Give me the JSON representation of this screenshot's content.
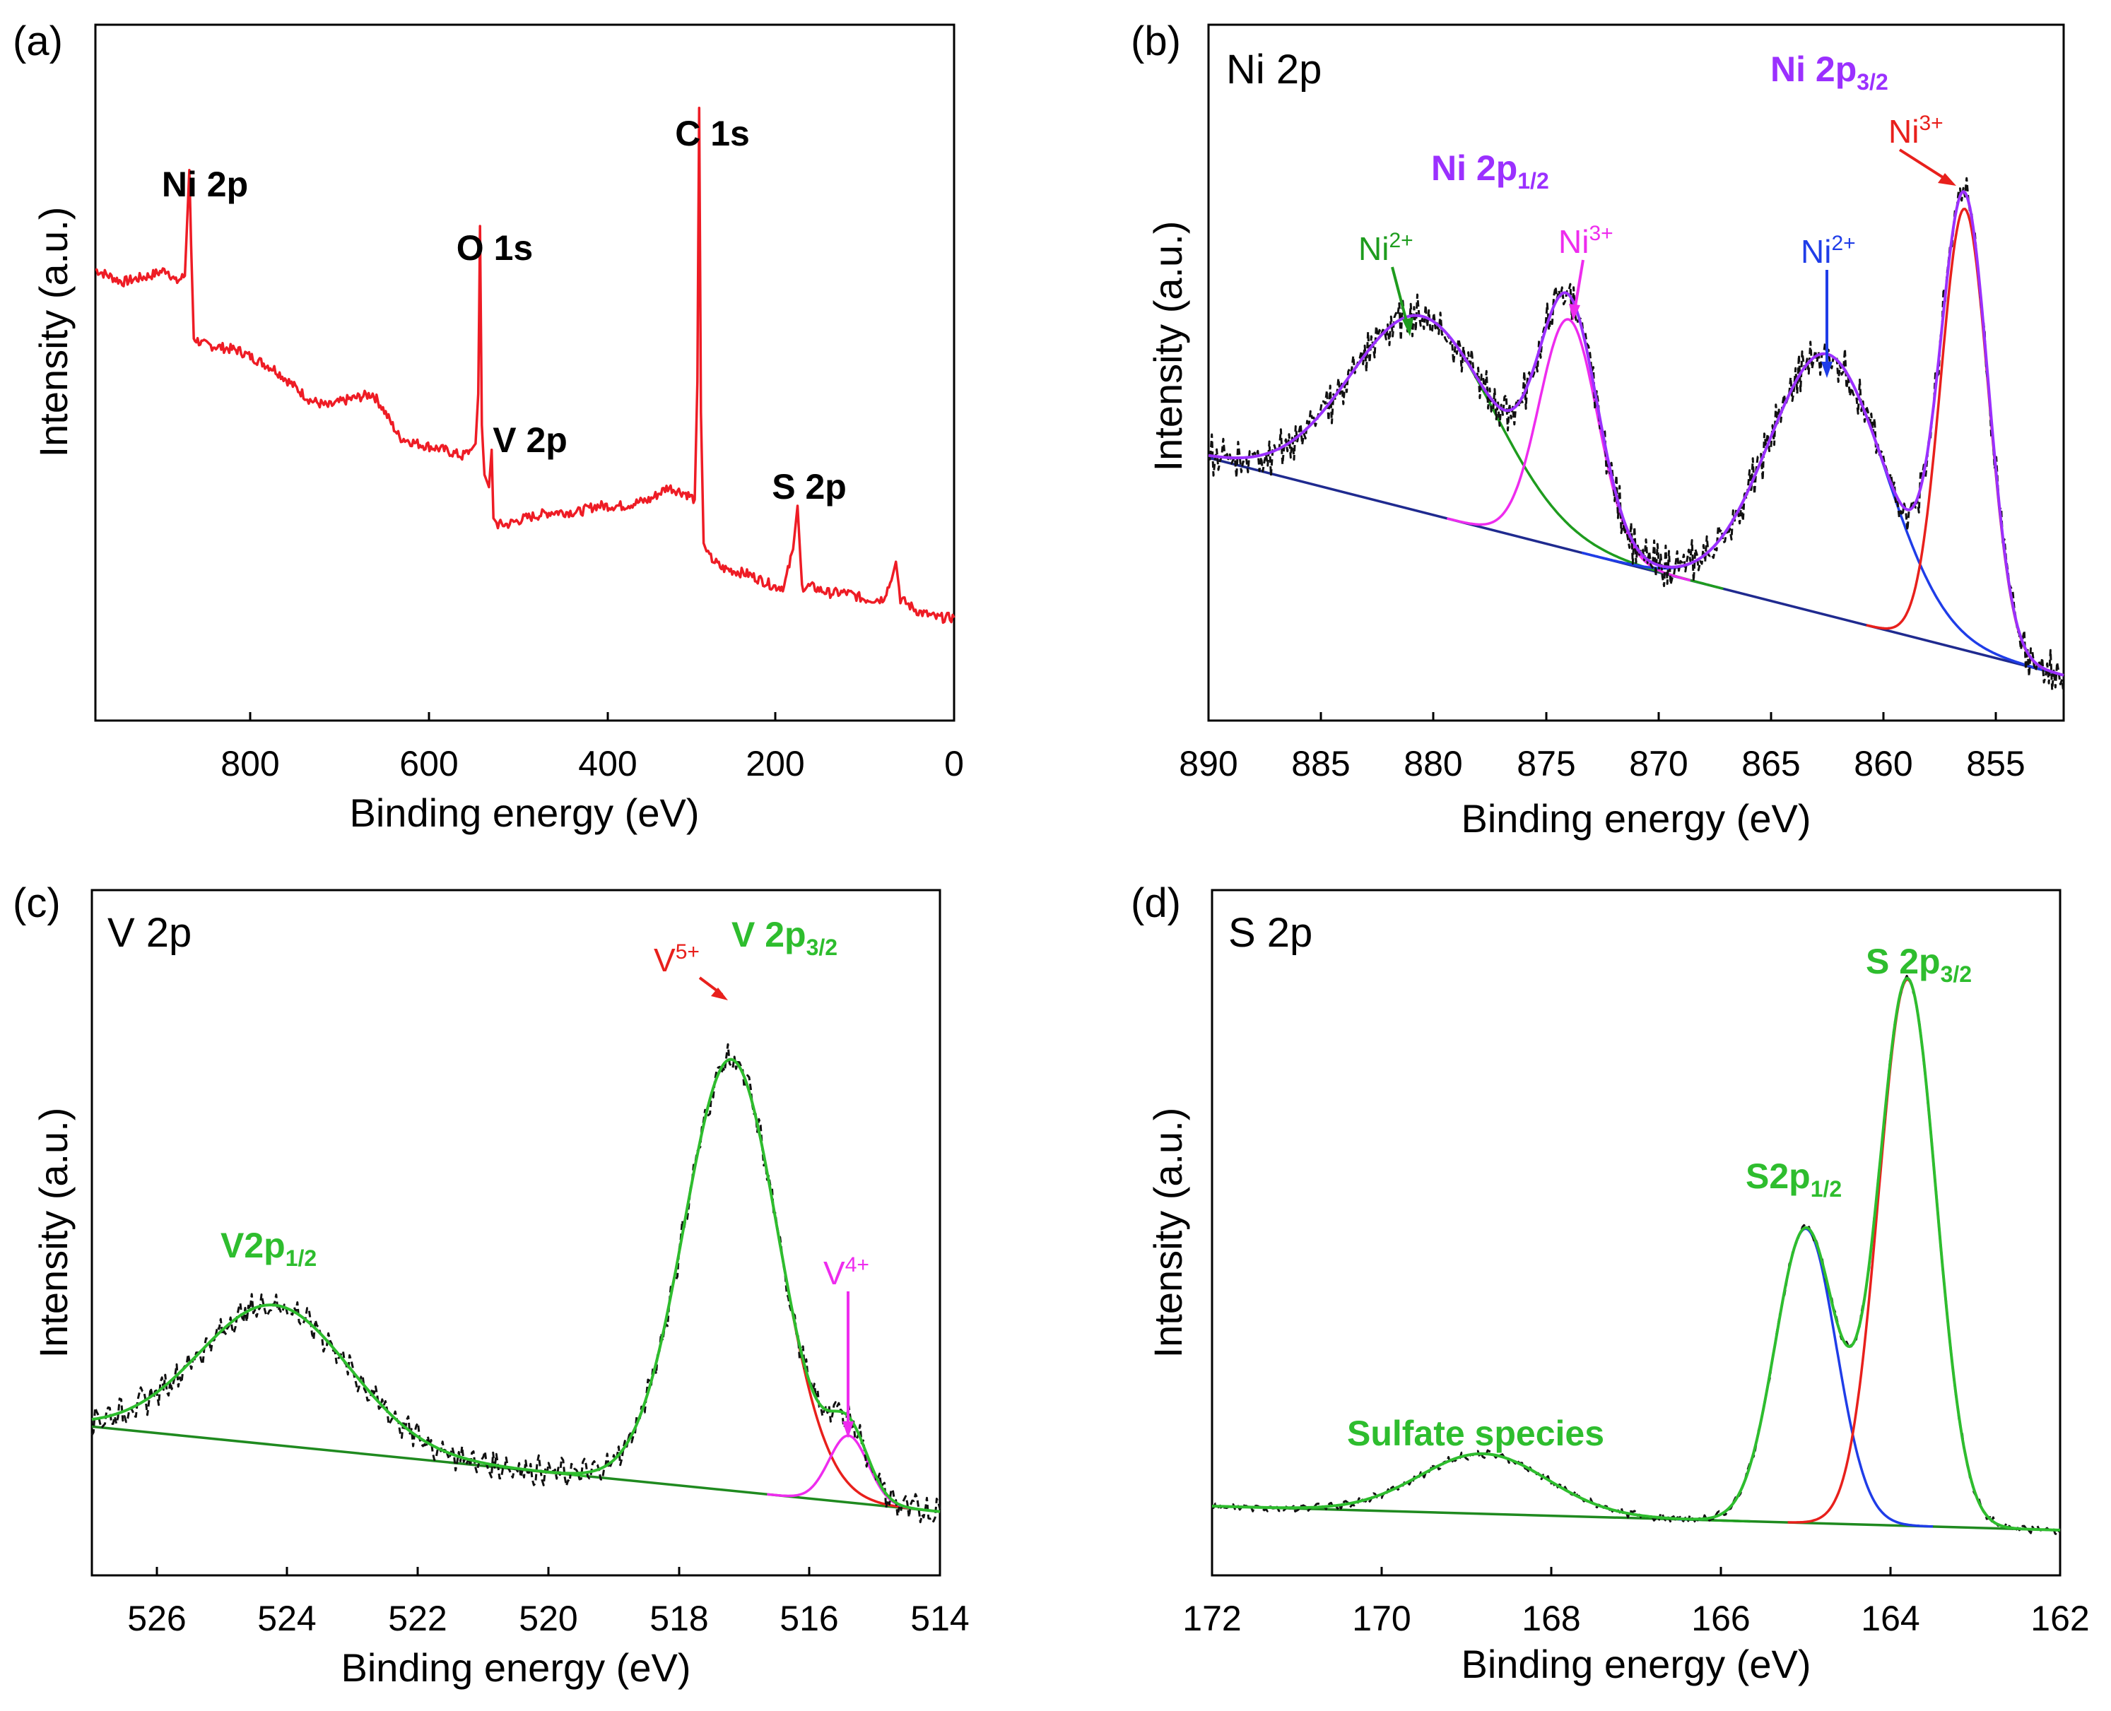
{
  "figure": {
    "x_axis_label": "Binding energy (eV)",
    "y_axis_label": "Intensity (a.u.)",
    "colors": {
      "survey": "#ee1c25",
      "data": "#111111",
      "envelope_ni": "#9b30ff",
      "envelope_green": "#2ebd2e",
      "baseline_ni": "#1f2a8f",
      "baseline_green": "#1f8a1f",
      "red": "#e8201c",
      "blue": "#1f3de8",
      "magenta": "#ee2cee",
      "green": "#1e9c1e",
      "purple": "#9b30ff"
    }
  },
  "chart_data": [
    {
      "panel": "(a)",
      "type": "line",
      "title": "",
      "xlabel": "Binding energy (eV)",
      "ylabel": "Intensity (a.u.)",
      "xlim": [
        960,
        0
      ],
      "ylim": [
        0,
        100
      ],
      "xticks": [
        "800",
        "600",
        "400",
        "200",
        "0"
      ],
      "xtick_values": [
        800,
        600,
        400,
        200,
        0
      ],
      "series": [
        {
          "name": "survey spectrum",
          "color": "#ee1c25",
          "x": [
            960,
            930,
            900,
            880,
            870,
            860,
            855,
            853,
            850,
            840,
            800,
            760,
            720,
            700,
            680,
            650,
            640,
            620,
            600,
            570,
            550,
            540,
            535,
            532,
            530,
            528,
            525,
            520,
            517,
            515,
            510,
            500,
            480,
            450,
            420,
            400,
            390,
            370,
            340,
            320,
            300,
            290,
            287,
            285,
            283,
            280,
            275,
            260,
            230,
            200,
            190,
            180,
            175,
            170,
            160,
            140,
            120,
            100,
            80,
            70,
            65,
            60,
            40,
            20,
            0
          ],
          "y": [
            68,
            66,
            67,
            68,
            66,
            67,
            84,
            72,
            57,
            56,
            55,
            52,
            47,
            46,
            47,
            48,
            46,
            41,
            40,
            39,
            38,
            39,
            40,
            48,
            75,
            43,
            35,
            33,
            39,
            28,
            27,
            27,
            28,
            29,
            29,
            30,
            30,
            30,
            31,
            33,
            32,
            31,
            50,
            94,
            45,
            24,
            22,
            20,
            19,
            17,
            17,
            23,
            30,
            17,
            17,
            16,
            16,
            15,
            15,
            18,
            21,
            15,
            13,
            12,
            12
          ]
        }
      ],
      "annotations": [
        {
          "text": "Ni 2p",
          "x": 855
        },
        {
          "text": "O 1s",
          "x": 531
        },
        {
          "text": "V 2p",
          "x": 517
        },
        {
          "text": "C 1s",
          "x": 285
        },
        {
          "text": "S 2p",
          "x": 169
        }
      ]
    },
    {
      "panel": "(b)",
      "corner_label": "Ni 2p",
      "type": "line",
      "xlabel": "Binding energy (eV)",
      "ylabel": "Intensity (a.u.)",
      "xlim": [
        890,
        852
      ],
      "ylim": [
        0,
        100
      ],
      "xticks": [
        "890",
        "885",
        "880",
        "875",
        "870",
        "865",
        "860",
        "855"
      ],
      "xtick_values": [
        890,
        885,
        880,
        875,
        870,
        865,
        860,
        855
      ],
      "baseline": {
        "x": [
          890,
          852
        ],
        "y": [
          40,
          5
        ],
        "color": "#1f2a8f"
      },
      "components": [
        {
          "name": "Ni2+ (2p1/2)",
          "color": "#1e9c1e",
          "center": 880.5,
          "sigma": 3.2,
          "amp": 31.5
        },
        {
          "name": "Ni3+ (2p1/2)",
          "color": "#ee2cee",
          "center": 874.0,
          "sigma": 1.3,
          "amp": 37
        },
        {
          "name": "Ni2+ (2p3/2)",
          "color": "#1f3de8",
          "center": 862.5,
          "sigma": 2.6,
          "amp": 42
        },
        {
          "name": "Ni3+ (2p3/2)",
          "color": "#e8201c",
          "center": 856.4,
          "sigma": 1.05,
          "amp": 71
        }
      ],
      "envelope_color": "#9b30ff",
      "annotations": [
        {
          "text": "Ni 2p",
          "sub": "3/2",
          "color": "#9b30ff",
          "style": "bold"
        },
        {
          "text": "Ni 2p",
          "sub": "1/2",
          "color": "#9b30ff",
          "style": "bold"
        },
        {
          "text": "Ni",
          "sup": "3+",
          "color": "#e8201c"
        },
        {
          "text": "Ni",
          "sup": "2+",
          "color": "#1e9c1e"
        },
        {
          "text": "Ni",
          "sup": "3+",
          "color": "#ee2cee"
        },
        {
          "text": "Ni",
          "sup": "2+",
          "color": "#1f3de8"
        }
      ]
    },
    {
      "panel": "(c)",
      "corner_label": "V 2p",
      "type": "line",
      "xlabel": "Binding energy (eV)",
      "ylabel": "Intensity (a.u.)",
      "xlim": [
        527,
        514
      ],
      "ylim": [
        0,
        100
      ],
      "xticks": [
        "526",
        "524",
        "522",
        "520",
        "518",
        "516",
        "514"
      ],
      "xtick_values": [
        526,
        524,
        522,
        520,
        518,
        516,
        514
      ],
      "baseline": {
        "x": [
          527,
          514
        ],
        "y": [
          21,
          7
        ],
        "color": "#1f8a1f"
      },
      "components": [
        {
          "name": "V2p1/2",
          "color": "#2ebd2e",
          "center": 524.2,
          "sigma": 1.15,
          "amp": 23
        },
        {
          "name": "V5+",
          "color": "#e8201c",
          "center": 517.2,
          "sigma": 0.72,
          "amp": 71
        },
        {
          "name": "V4+",
          "color": "#ee2cee",
          "center": 515.4,
          "sigma": 0.3,
          "amp": 11
        }
      ],
      "envelope_color": "#2ebd2e",
      "annotations": [
        {
          "text": "V 2p",
          "sub": "3/2",
          "color": "#2ebd2e",
          "style": "bold"
        },
        {
          "text": "V2p",
          "sub": "1/2",
          "color": "#2ebd2e",
          "style": "bold"
        },
        {
          "text": "V",
          "sup": "5+",
          "color": "#e8201c"
        },
        {
          "text": "V",
          "sup": "4+",
          "color": "#ee2cee"
        }
      ]
    },
    {
      "panel": "(d)",
      "corner_label": "S 2p",
      "type": "line",
      "xlabel": "Binding energy (eV)",
      "ylabel": "Intensity (a.u.)",
      "xlim": [
        172,
        162
      ],
      "ylim": [
        0,
        100
      ],
      "xticks": [
        "172",
        "170",
        "168",
        "166",
        "164",
        "162"
      ],
      "xtick_values": [
        172,
        170,
        168,
        166,
        164,
        162
      ],
      "baseline": {
        "x": [
          172,
          162
        ],
        "y": [
          8,
          4
        ],
        "color": "#1f8a1f"
      },
      "components": [
        {
          "name": "Sulfate species",
          "color": "#1e9c1e",
          "center": 168.8,
          "sigma": 0.75,
          "amp": 10
        },
        {
          "name": "S2p1/2",
          "color": "#1f3de8",
          "center": 165.0,
          "sigma": 0.36,
          "amp": 49
        },
        {
          "name": "S 2p3/2",
          "color": "#e8201c",
          "center": 163.8,
          "sigma": 0.34,
          "amp": 91
        }
      ],
      "envelope_color": "#2ebd2e",
      "annotations": [
        {
          "text": "S 2p",
          "sub": "3/2",
          "color": "#2ebd2e",
          "style": "bold"
        },
        {
          "text": "S2p",
          "sub": "1/2",
          "color": "#2ebd2e",
          "style": "bold"
        },
        {
          "text": "Sulfate species",
          "color": "#2ebd2e",
          "style": "bold"
        }
      ]
    }
  ]
}
